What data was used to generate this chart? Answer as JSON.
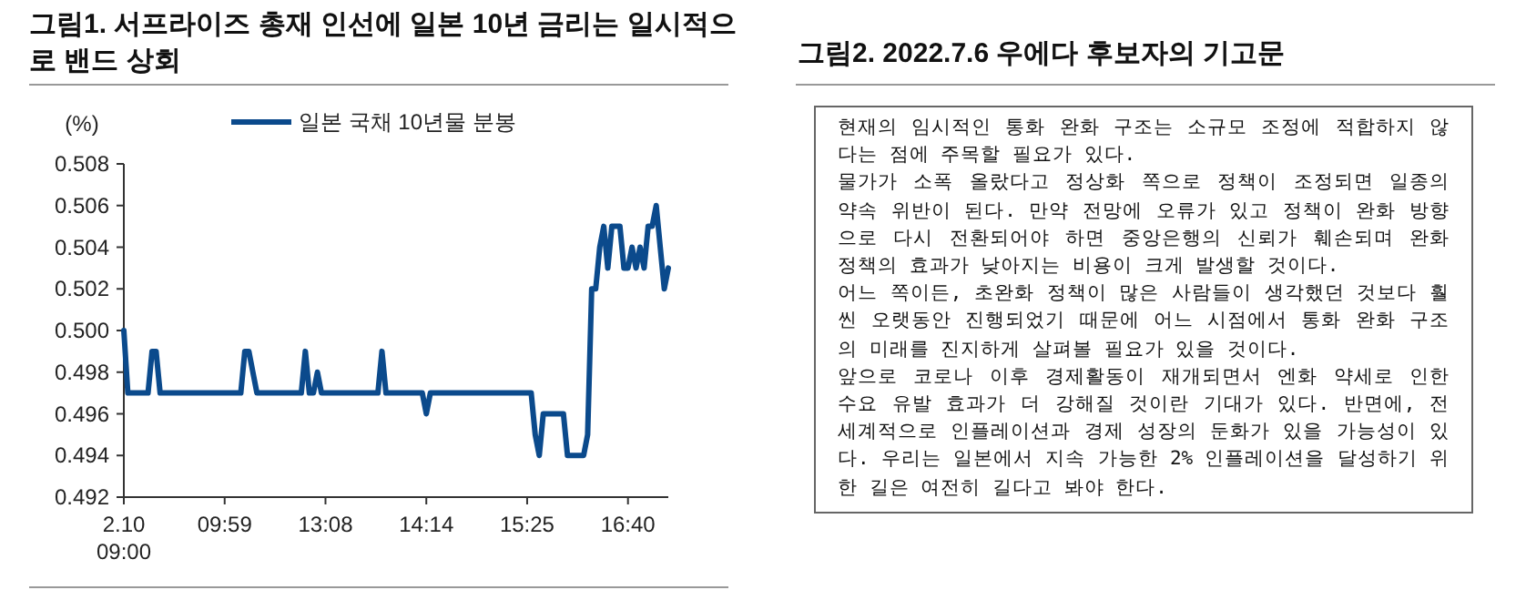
{
  "chart_data": [
    {
      "type": "line",
      "title": "그림1. 서프라이즈 총재 인선에 일본 10년 금리는 일시적으로 밴드 상회",
      "ylabel": "(%)",
      "legend": "top",
      "grid": false,
      "marker": "none",
      "line_style": "solid",
      "ylim": [
        0.492,
        0.508
      ],
      "categories": [
        "2.10\n09:00",
        null,
        null,
        null,
        null,
        null,
        null,
        null,
        null,
        null,
        null,
        null,
        null,
        null,
        null,
        null,
        null,
        null,
        null,
        null,
        null,
        null,
        null,
        null,
        null,
        "09:59",
        null,
        null,
        null,
        null,
        null,
        null,
        null,
        null,
        null,
        null,
        null,
        null,
        null,
        null,
        null,
        null,
        null,
        null,
        null,
        null,
        null,
        null,
        null,
        null,
        "13:08",
        null,
        null,
        null,
        null,
        null,
        null,
        null,
        null,
        null,
        null,
        null,
        null,
        null,
        null,
        null,
        null,
        null,
        null,
        null,
        null,
        null,
        null,
        null,
        null,
        "14:14",
        null,
        null,
        null,
        null,
        null,
        null,
        null,
        null,
        null,
        null,
        null,
        null,
        null,
        null,
        null,
        null,
        null,
        null,
        null,
        null,
        null,
        null,
        null,
        null,
        "15:25",
        null,
        null,
        null,
        null,
        null,
        null,
        null,
        null,
        null,
        null,
        null,
        null,
        null,
        null,
        null,
        null,
        null,
        null,
        null,
        null,
        null,
        null,
        null,
        null,
        "16:40",
        null,
        null,
        null,
        null,
        null,
        null,
        null,
        null,
        null,
        null
      ],
      "yticks": [
        {
          "value": 0.492,
          "label": "0.492"
        },
        {
          "value": 0.494,
          "label": "0.494"
        },
        {
          "value": 0.496,
          "label": "0.496"
        },
        {
          "value": 0.498,
          "label": "0.498"
        },
        {
          "value": 0.5,
          "label": "0.500"
        },
        {
          "value": 0.502,
          "label": "0.502"
        },
        {
          "value": 0.504,
          "label": "0.504"
        },
        {
          "value": 0.506,
          "label": "0.506"
        },
        {
          "value": 0.508,
          "label": "0.508"
        }
      ],
      "series": [
        {
          "name": "일본 국채 10년물 분봉",
          "color": "#0b4a8c",
          "values": [
            0.5,
            0.497,
            0.497,
            0.497,
            0.497,
            0.497,
            0.497,
            0.499,
            0.499,
            0.497,
            0.497,
            0.497,
            0.497,
            0.497,
            0.497,
            0.497,
            0.497,
            0.497,
            0.497,
            0.497,
            0.497,
            0.497,
            0.497,
            0.497,
            0.497,
            0.497,
            0.497,
            0.497,
            0.497,
            0.497,
            0.499,
            0.499,
            0.498,
            0.497,
            0.497,
            0.497,
            0.497,
            0.497,
            0.497,
            0.497,
            0.497,
            0.497,
            0.497,
            0.497,
            0.497,
            0.499,
            0.497,
            0.497,
            0.498,
            0.497,
            0.497,
            0.497,
            0.497,
            0.497,
            0.497,
            0.497,
            0.497,
            0.497,
            0.497,
            0.497,
            0.497,
            0.497,
            0.497,
            0.497,
            0.499,
            0.497,
            0.497,
            0.497,
            0.497,
            0.497,
            0.497,
            0.497,
            0.497,
            0.497,
            0.497,
            0.496,
            0.497,
            0.497,
            0.497,
            0.497,
            0.497,
            0.497,
            0.497,
            0.497,
            0.497,
            0.497,
            0.497,
            0.497,
            0.497,
            0.497,
            0.497,
            0.497,
            0.497,
            0.497,
            0.497,
            0.497,
            0.497,
            0.497,
            0.497,
            0.497,
            0.497,
            0.497,
            0.495,
            0.494,
            0.496,
            0.496,
            0.496,
            0.496,
            0.496,
            0.496,
            0.494,
            0.494,
            0.494,
            0.494,
            0.494,
            0.495,
            0.502,
            0.502,
            0.504,
            0.505,
            0.503,
            0.505,
            0.505,
            0.505,
            0.503,
            0.503,
            0.504,
            0.503,
            0.504,
            0.503,
            0.505,
            0.505,
            0.506,
            0.504,
            0.502,
            0.503
          ]
        }
      ]
    },
    {
      "type": "other",
      "title": "그림2. 2022.7.6 우에다 후보자의 기고문",
      "annotations": [
        "현재의 임시적인 통화 완화 구조는 소규모 조정에 적합하지 않다는 점에 주목할 필요가 있다.",
        "물가가 소폭 올랐다고 정상화 쪽으로 정책이 조정되면 일종의 약속 위반이 된다. 만약 전망에 오류가 있고 정책이 완화 방향으로 다시 전환되어야 하면 중앙은행의 신뢰가 훼손되며 완화 정책의 효과가 낮아지는 비용이 크게 발생할 것이다.",
        "어느 쪽이든, 초완화 정책이 많은 사람들이 생각했던 것보다 훨씬 오랫동안 진행되었기 때문에 어느 시점에서 통화 완화 구조의 미래를 진지하게 살펴볼 필요가 있을 것이다.",
        "앞으로 코로나 이후 경제활동이 재개되면서 엔화 약세로 인한 수요 유발 효과가 더 강해질 것이란 기대가 있다. 반면에, 전 세계적으로 인플레이션과 경제 성장의 둔화가 있을 가능성이 있다. 우리는 일본에서 지속 가능한 2% 인플레이션을 달성하기 위한 길은 여전히 길다고 봐야 한다."
      ]
    }
  ]
}
